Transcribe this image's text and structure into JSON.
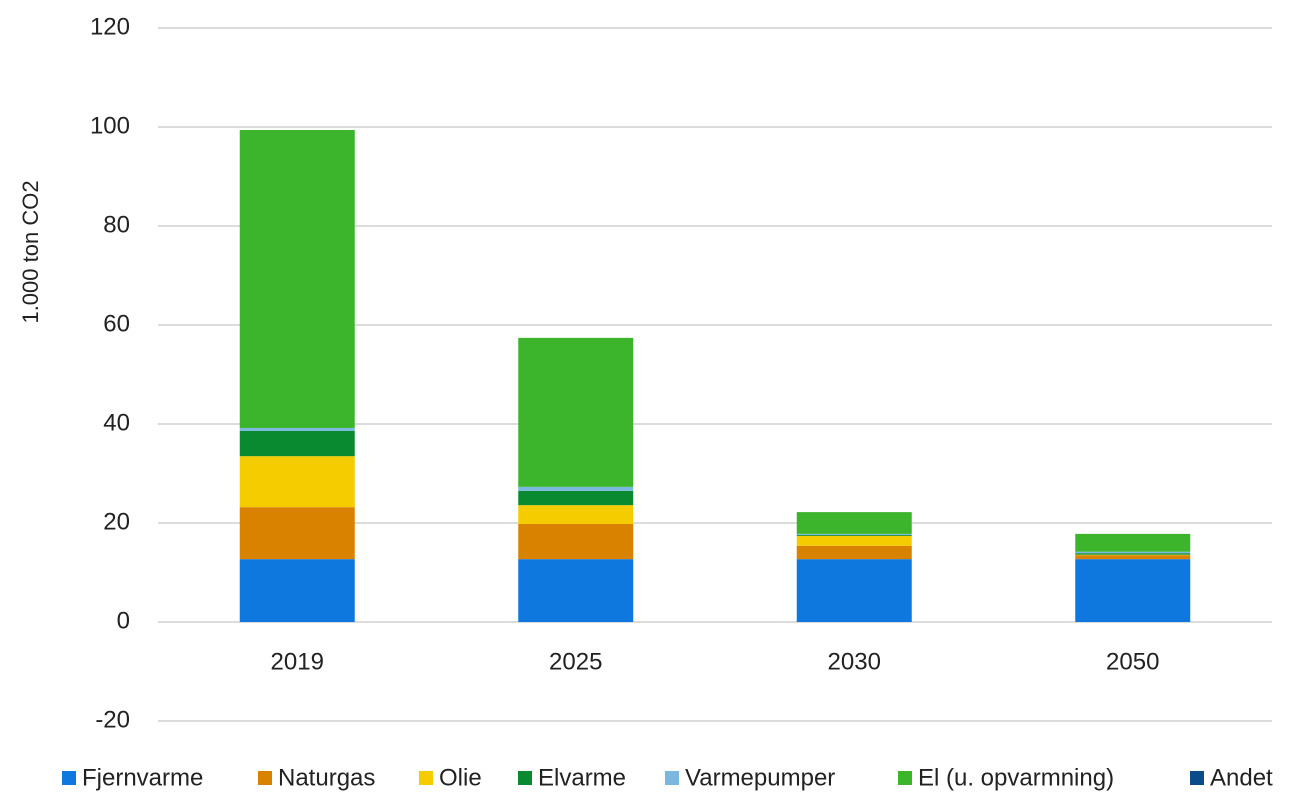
{
  "chart_data": {
    "type": "stacked_bar",
    "y_axis_label": "1.000 ton CO2",
    "categories": [
      "2019",
      "2025",
      "2030",
      "2050"
    ],
    "series": [
      {
        "name": "Fjernvarme",
        "color": "#0f78de",
        "values": [
          12.7,
          12.7,
          12.7,
          12.7
        ]
      },
      {
        "name": "Naturgas",
        "color": "#d98200",
        "values": [
          10.5,
          7.1,
          2.7,
          0.8
        ]
      },
      {
        "name": "Olie",
        "color": "#f5cc00",
        "values": [
          10.3,
          3.8,
          2.0,
          0.1
        ]
      },
      {
        "name": "Elvarme",
        "color": "#0a8a30",
        "values": [
          5.1,
          2.9,
          0.2,
          0.3
        ]
      },
      {
        "name": "Varmepumper",
        "color": "#7ab8e0",
        "values": [
          0.6,
          0.8,
          0.2,
          0.3
        ]
      },
      {
        "name": "El (u. opvarmning)",
        "color": "#3cb52c",
        "values": [
          60.2,
          30.1,
          4.4,
          3.6
        ]
      },
      {
        "name": "Andet",
        "color": "#0a4c8a",
        "values": [
          0,
          0,
          0,
          0
        ]
      }
    ],
    "ylim": [
      -20,
      120
    ],
    "yticks": [
      -20,
      0,
      20,
      40,
      60,
      80,
      100,
      120
    ],
    "grid": true,
    "legend": "bottom"
  }
}
